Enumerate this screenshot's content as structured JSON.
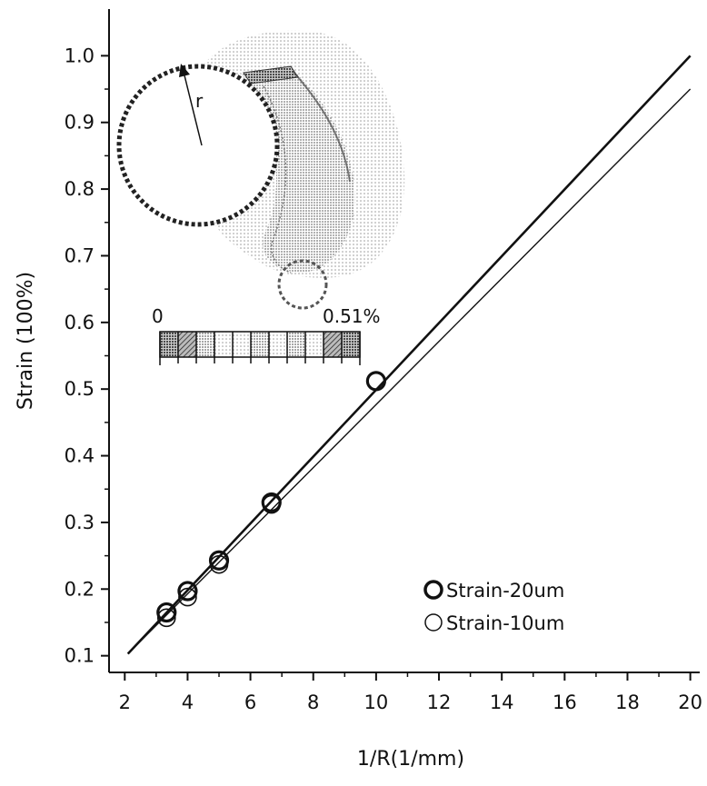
{
  "chart_data": {
    "type": "scatter",
    "title": "",
    "xlabel": "1/R(1/mm)",
    "ylabel": "Strain (100%)",
    "xlim": [
      1.5,
      20.3
    ],
    "ylim": [
      0.075,
      1.07
    ],
    "xticks": [
      2,
      4,
      6,
      8,
      10,
      12,
      14,
      16,
      18,
      20
    ],
    "yticks": [
      0.1,
      0.2,
      0.3,
      0.4,
      0.5,
      0.6,
      0.7,
      0.8,
      0.9,
      1.0
    ],
    "xtick_labels": [
      "2",
      "4",
      "6",
      "8",
      "10",
      "12",
      "14",
      "16",
      "18",
      "20"
    ],
    "ytick_labels": [
      "0.1",
      "0.2",
      "0.3",
      "0.4",
      "0.5",
      "0.6",
      "0.7",
      "0.8",
      "0.9",
      "1.0"
    ],
    "grid": false,
    "legend_position": "bottom-right",
    "series": [
      {
        "name": "Strain-20um",
        "marker": "circle-thick",
        "x": [
          3.33,
          4.0,
          5.0,
          6.67,
          10.0
        ],
        "y": [
          0.165,
          0.197,
          0.243,
          0.33,
          0.512
        ]
      },
      {
        "name": "Strain-10um",
        "marker": "circle-thin",
        "x": [
          3.33,
          4.0,
          5.0,
          6.67
        ],
        "y": [
          0.157,
          0.188,
          0.237,
          0.327
        ]
      }
    ],
    "fit_lines": [
      {
        "style": "thick",
        "x": [
          2.1,
          20.0
        ],
        "y": [
          0.103,
          1.0
        ]
      },
      {
        "style": "thin",
        "x": [
          2.1,
          20.0
        ],
        "y": [
          0.103,
          0.95
        ]
      }
    ],
    "inset": {
      "radius_label": "r",
      "scale_min_label": "0",
      "scale_max_label": "0.51%"
    }
  }
}
